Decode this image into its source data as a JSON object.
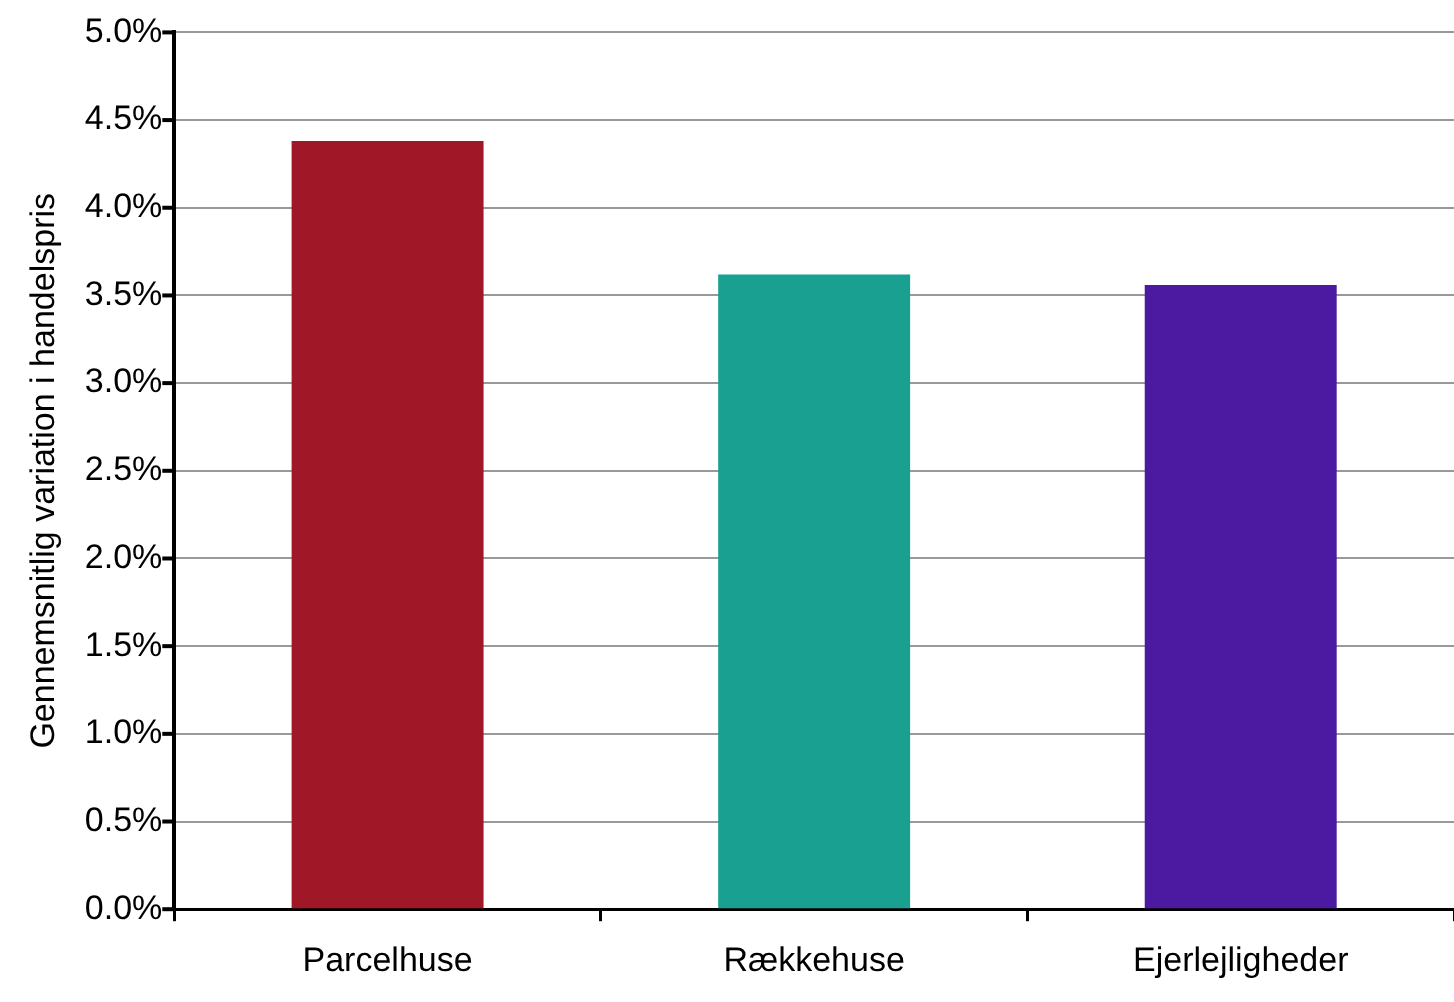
{
  "chart_data": {
    "type": "bar",
    "ylabel": "Gennemsnitlig variation i handelspris",
    "categories": [
      "Parcelhuse",
      "Rækkehuse",
      "Ejerlejligheder"
    ],
    "values": [
      4.38,
      3.62,
      3.56
    ],
    "colors": [
      "#a01828",
      "#1aa090",
      "#4c1aa0"
    ],
    "ylim": [
      0,
      5
    ],
    "yticks": [
      {
        "value": 0,
        "label": "0.0%"
      },
      {
        "value": 0.5,
        "label": "0.5%"
      },
      {
        "value": 1,
        "label": "1.0%"
      },
      {
        "value": 1.5,
        "label": "1.5%"
      },
      {
        "value": 2,
        "label": "2.0%"
      },
      {
        "value": 2.5,
        "label": "2.5%"
      },
      {
        "value": 3,
        "label": "3.0%"
      },
      {
        "value": 3.5,
        "label": "3.5%"
      },
      {
        "value": 4,
        "label": "4.0%"
      },
      {
        "value": 4.5,
        "label": "4.5%"
      },
      {
        "value": 5,
        "label": "5.0%"
      }
    ],
    "grid": "y",
    "legend": false
  }
}
